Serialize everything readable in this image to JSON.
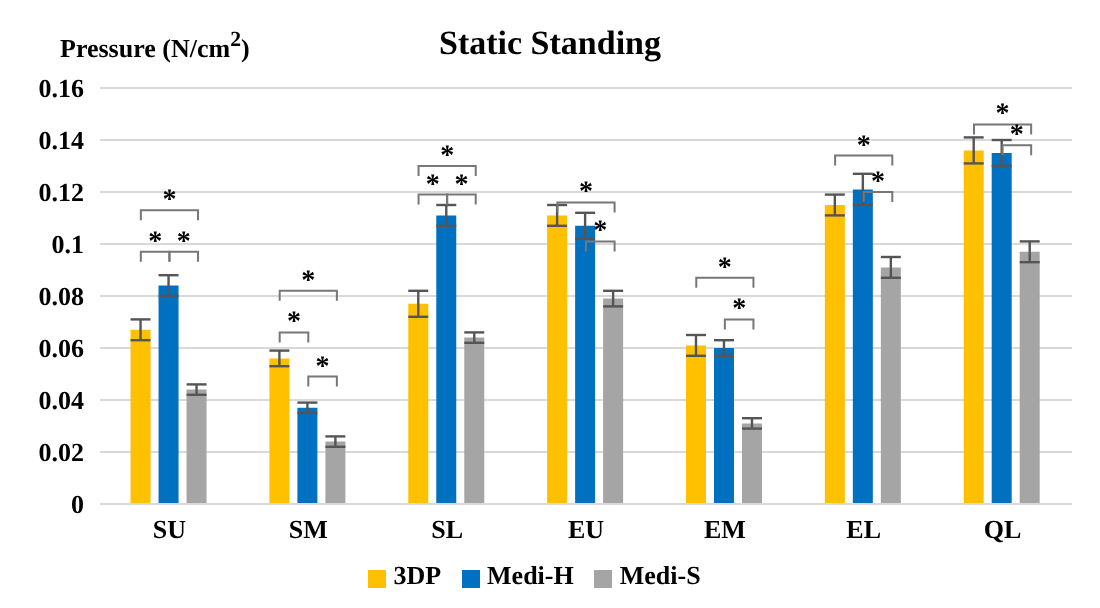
{
  "chart_data": {
    "type": "bar",
    "title": "Static Standing",
    "ylabel": "Pressure (N/cm$^{2}$)",
    "categories": [
      "SU",
      "SM",
      "SL",
      "EU",
      "EM",
      "EL",
      "QL"
    ],
    "series": [
      {
        "name": "3DP",
        "color": "#ffc000",
        "values": [
          0.067,
          0.056,
          0.077,
          0.111,
          0.061,
          0.115,
          0.136
        ],
        "errors": [
          0.004,
          0.003,
          0.005,
          0.004,
          0.004,
          0.004,
          0.005
        ]
      },
      {
        "name": "Medi-H",
        "color": "#0070c0",
        "values": [
          0.084,
          0.037,
          0.111,
          0.107,
          0.06,
          0.121,
          0.135
        ],
        "errors": [
          0.004,
          0.002,
          0.004,
          0.005,
          0.003,
          0.006,
          0.005
        ]
      },
      {
        "name": "Medi-S",
        "color": "#a5a5a5",
        "values": [
          0.044,
          0.024,
          0.064,
          0.079,
          0.031,
          0.091,
          0.097
        ],
        "errors": [
          0.002,
          0.002,
          0.002,
          0.003,
          0.002,
          0.004,
          0.004
        ]
      }
    ],
    "ylim": [
      0,
      0.16
    ],
    "yticks": [
      0,
      0.02,
      0.04,
      0.06,
      0.08,
      {
        "value": 0.1,
        "label": "0.1"
      },
      0.12,
      0.14,
      0.16
    ],
    "grid": "y",
    "legend": "bottom",
    "annotations": [
      "*",
      "*",
      "*",
      "*",
      "*",
      "*",
      "*",
      "*",
      "*",
      "*",
      "*",
      "*",
      "*",
      "*",
      "*",
      "*",
      "*"
    ]
  }
}
